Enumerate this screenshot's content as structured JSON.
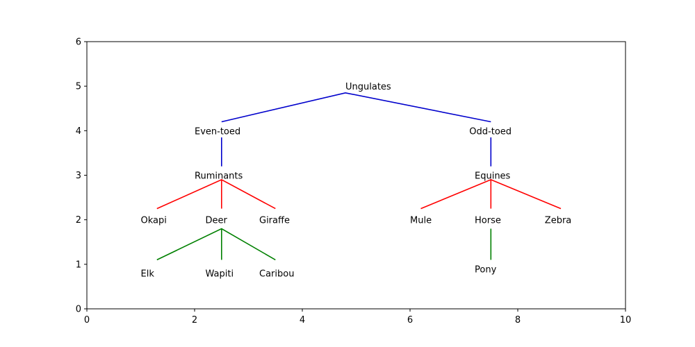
{
  "chart_data": {
    "type": "diagram",
    "title": "",
    "xlabel": "",
    "ylabel": "",
    "xlim": [
      0,
      10
    ],
    "ylim": [
      0,
      6
    ],
    "xticks": [
      0,
      2,
      4,
      6,
      8,
      10
    ],
    "yticks": [
      0,
      1,
      2,
      3,
      4,
      5,
      6
    ],
    "grid": false,
    "nodes": [
      {
        "id": "ungulates",
        "label": "Ungulates",
        "x": 4.8,
        "y": 5.0
      },
      {
        "id": "even-toed",
        "label": "Even-toed",
        "x": 2.0,
        "y": 4.0
      },
      {
        "id": "odd-toed",
        "label": "Odd-toed",
        "x": 7.1,
        "y": 4.0
      },
      {
        "id": "ruminants",
        "label": "Ruminants",
        "x": 2.0,
        "y": 3.0
      },
      {
        "id": "equines",
        "label": "Equines",
        "x": 7.2,
        "y": 3.0
      },
      {
        "id": "okapi",
        "label": "Okapi",
        "x": 1.0,
        "y": 2.0
      },
      {
        "id": "deer",
        "label": "Deer",
        "x": 2.2,
        "y": 2.0
      },
      {
        "id": "giraffe",
        "label": "Giraffe",
        "x": 3.2,
        "y": 2.0
      },
      {
        "id": "mule",
        "label": "Mule",
        "x": 6.0,
        "y": 2.0
      },
      {
        "id": "horse",
        "label": "Horse",
        "x": 7.2,
        "y": 2.0
      },
      {
        "id": "zebra",
        "label": "Zebra",
        "x": 8.5,
        "y": 2.0
      },
      {
        "id": "elk",
        "label": "Elk",
        "x": 1.0,
        "y": 0.8
      },
      {
        "id": "wapiti",
        "label": "Wapiti",
        "x": 2.2,
        "y": 0.8
      },
      {
        "id": "caribou",
        "label": "Caribou",
        "x": 3.2,
        "y": 0.8
      },
      {
        "id": "pony",
        "label": "Pony",
        "x": 7.2,
        "y": 0.9
      }
    ],
    "edges": [
      {
        "x": [
          2.5,
          4.8,
          7.5
        ],
        "y": [
          4.2,
          4.85,
          4.2
        ],
        "color": "#0000cc"
      },
      {
        "x": [
          2.5,
          2.5
        ],
        "y": [
          3.85,
          3.2
        ],
        "color": "#0000cc"
      },
      {
        "x": [
          7.5,
          7.5
        ],
        "y": [
          3.85,
          3.2
        ],
        "color": "#0000cc"
      },
      {
        "x": [
          1.3,
          2.5,
          3.5
        ],
        "y": [
          2.25,
          2.9,
          2.25
        ],
        "color": "#ff0000"
      },
      {
        "x": [
          2.5,
          2.5
        ],
        "y": [
          2.9,
          2.25
        ],
        "color": "#ff0000"
      },
      {
        "x": [
          6.2,
          7.5,
          8.8
        ],
        "y": [
          2.25,
          2.9,
          2.25
        ],
        "color": "#ff0000"
      },
      {
        "x": [
          7.5,
          7.5
        ],
        "y": [
          2.9,
          2.25
        ],
        "color": "#ff0000"
      },
      {
        "x": [
          1.3,
          2.5,
          3.5
        ],
        "y": [
          1.1,
          1.8,
          1.1
        ],
        "color": "#008000"
      },
      {
        "x": [
          2.5,
          2.5
        ],
        "y": [
          1.8,
          1.1
        ],
        "color": "#008000"
      },
      {
        "x": [
          7.5,
          7.5
        ],
        "y": [
          1.8,
          1.1
        ],
        "color": "#008000"
      }
    ]
  }
}
